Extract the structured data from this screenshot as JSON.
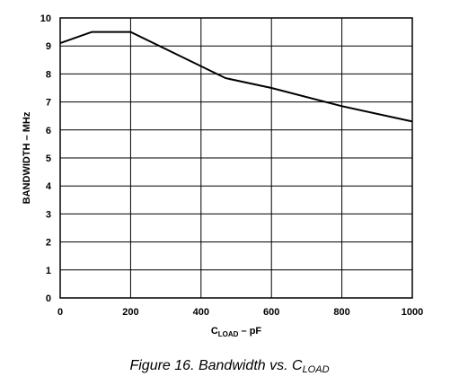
{
  "chart_data": {
    "type": "line",
    "caption": {
      "text": "Figure 16. Bandwidth vs. C",
      "subscript": "LOAD"
    },
    "xlabel": {
      "main": "C",
      "subscript": "LOAD",
      "unit": " – pF"
    },
    "ylabel": "BANDWIDTH – MHz",
    "xlim": [
      0,
      1000
    ],
    "ylim": [
      0,
      10
    ],
    "x_ticks": [
      0,
      200,
      400,
      600,
      800,
      1000
    ],
    "y_ticks": [
      0,
      1,
      2,
      3,
      4,
      5,
      6,
      7,
      8,
      9,
      10
    ],
    "grid": true,
    "series": [
      {
        "points": [
          [
            0,
            9.1
          ],
          [
            90,
            9.5
          ],
          [
            200,
            9.5
          ],
          [
            470,
            7.85
          ],
          [
            600,
            7.5
          ],
          [
            800,
            6.85
          ],
          [
            1000,
            6.3
          ]
        ]
      }
    ]
  }
}
